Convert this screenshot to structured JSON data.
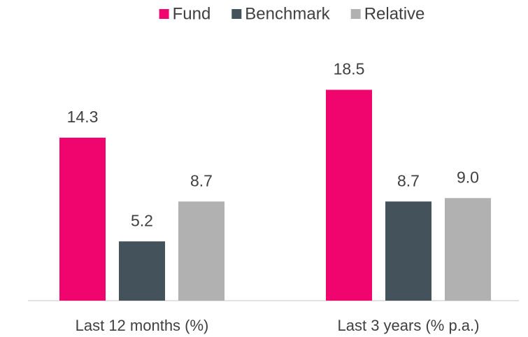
{
  "chart_data": {
    "type": "bar",
    "categories": [
      "Last 12 months (%)",
      "Last 3 years (% p.a.)"
    ],
    "series": [
      {
        "name": "Fund",
        "color": "#f0056e",
        "values": [
          14.3,
          18.5
        ],
        "value_labels": [
          "14.3",
          "18.5"
        ]
      },
      {
        "name": "Benchmark",
        "color": "#44525c",
        "values": [
          5.2,
          8.7
        ],
        "value_labels": [
          "5.2",
          "8.7"
        ]
      },
      {
        "name": "Relative",
        "color": "#b1b1b1",
        "values": [
          8.7,
          9.0
        ],
        "value_labels": [
          "8.7",
          "9.0"
        ]
      }
    ],
    "legend": "top"
  }
}
